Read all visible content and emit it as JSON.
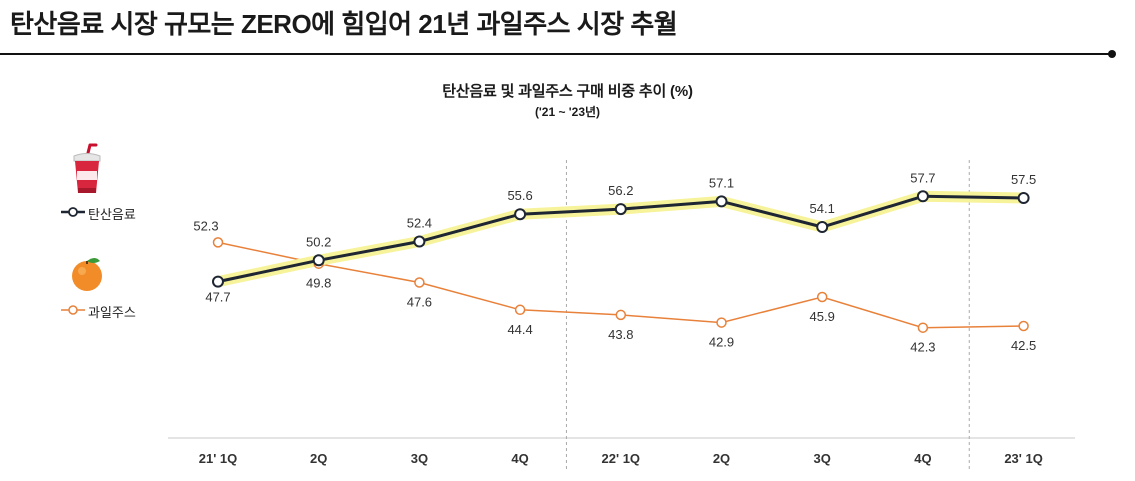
{
  "header": {
    "title": "탄산음료 시장 규모는 ZERO에 힘입어 21년 과일주스 시장 추월"
  },
  "legend": [
    {
      "label": "탄산음료",
      "icon": "soda-cup-icon",
      "color": "#1f2633"
    },
    {
      "label": "과일주스",
      "icon": "orange-icon",
      "color": "#e8813a"
    }
  ],
  "chart_data": {
    "type": "line",
    "title": "탄산음료 및 과일주스 구매 비중 추이 (%)",
    "subtitle": "('21 ~ '23년)",
    "categories": [
      "21' 1Q",
      "2Q",
      "3Q",
      "4Q",
      "22' 1Q",
      "2Q",
      "3Q",
      "4Q",
      "23' 1Q"
    ],
    "series": [
      {
        "name": "탄산음료",
        "color": "#1f2633",
        "highlight": "#f7f39a",
        "values": [
          47.7,
          50.2,
          52.4,
          55.6,
          56.2,
          57.1,
          54.1,
          57.7,
          57.5
        ]
      },
      {
        "name": "과일주스",
        "color": "#e8813a",
        "values": [
          52.3,
          49.8,
          47.6,
          44.4,
          43.8,
          42.9,
          45.9,
          42.3,
          42.5
        ]
      }
    ],
    "xlabel": "",
    "ylabel": "",
    "ylim": [
      35,
      62
    ],
    "grid": false,
    "year_dividers_after": [
      "4Q",
      "4Q"
    ]
  }
}
